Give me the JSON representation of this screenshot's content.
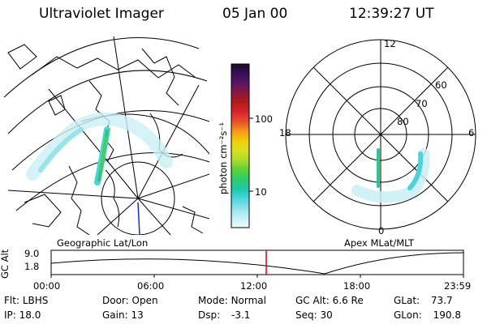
{
  "header": {
    "instrument": "Ultraviolet Imager",
    "date": "05 Jan 00",
    "time": "12:39:27 UT"
  },
  "colorbar": {
    "unit_label": "photon cm⁻²s⁻¹",
    "ticks": [
      "100",
      "10"
    ],
    "colors": [
      "#1a0a2a",
      "#3a0e5a",
      "#5a1466",
      "#8a1838",
      "#b31b1b",
      "#d8242a",
      "#e8502a",
      "#f59a12",
      "#f2cd0a",
      "#d7e21a",
      "#a8dc2e",
      "#58d23c",
      "#2ccc6c",
      "#20c8ae",
      "#4cd4dc",
      "#90e2ea",
      "#c8f0f4",
      "#f2fafc"
    ]
  },
  "geo_panel": {
    "label": "Geographic Lat/Lon"
  },
  "polar_panel": {
    "label": "Apex MLat/MLT",
    "mlt_labels": {
      "top": "12",
      "left": "18",
      "right": "6",
      "bottom": "0"
    },
    "lat_labels": [
      "60",
      "70",
      "80"
    ]
  },
  "altitude_plot": {
    "ylabel": "GC Alt",
    "yticks": [
      "9.0",
      "1.8"
    ],
    "xticks": [
      "00:00",
      "06:00",
      "12:00",
      "18:00",
      "23:59"
    ]
  },
  "info_rows": [
    [
      {
        "label": "Flt:",
        "value": "LBHS"
      },
      {
        "label": "Door:",
        "value": "Open"
      },
      {
        "label": "Mode:",
        "value": "Normal"
      },
      {
        "label": "GC Alt:",
        "value": "6.6 Re"
      },
      {
        "label": "GLat:",
        "value": "73.7"
      }
    ],
    [
      {
        "label": "IP:",
        "value": "18.0"
      },
      {
        "label": "Gain:",
        "value": "13"
      },
      {
        "label": "Dsp:",
        "value": "-3.1"
      },
      {
        "label": "Seq:",
        "value": "30"
      },
      {
        "label": "GLon:",
        "value": "190.8"
      }
    ]
  ]
}
